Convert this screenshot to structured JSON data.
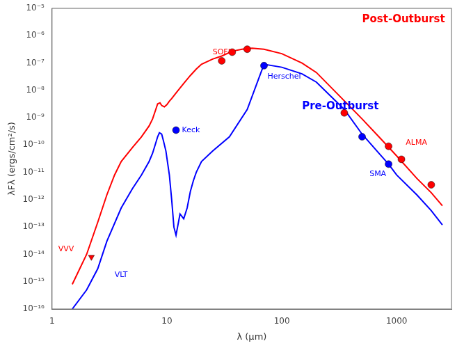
{
  "chart_data": {
    "type": "line",
    "log": true,
    "grid": false,
    "xlabel": "λ (μm)",
    "ylabel": "λFλ (ergs/cm²/s)",
    "xlim": [
      1.0,
      3000.0
    ],
    "ylim": [
      1e-16,
      1e-05
    ],
    "xticks": [
      1,
      10,
      100,
      1000
    ],
    "yticks": [
      {
        "value": 1e-16,
        "label": "10⁻¹⁶"
      },
      {
        "value": 1e-15,
        "label": "10⁻¹⁵"
      },
      {
        "value": 1e-14,
        "label": "10⁻¹⁴"
      },
      {
        "value": 1e-13,
        "label": "10⁻¹³"
      },
      {
        "value": 1e-12,
        "label": "10⁻¹²"
      },
      {
        "value": 1e-11,
        "label": "10⁻¹¹"
      },
      {
        "value": 1e-10,
        "label": "10⁻¹⁰"
      },
      {
        "value": 1e-09,
        "label": "10⁻⁹"
      },
      {
        "value": 1e-08,
        "label": "10⁻⁸"
      },
      {
        "value": 1e-07,
        "label": "10⁻⁷"
      },
      {
        "value": 1e-06,
        "label": "10⁻⁶"
      },
      {
        "value": 1e-05,
        "label": "10⁻⁵"
      }
    ],
    "series": [
      {
        "type": "line",
        "color": "red",
        "line_style": "solid",
        "marker": "none",
        "x": [
          1.5,
          2.0,
          2.5,
          3.0,
          3.5,
          4.0,
          5.0,
          6.0,
          7.0,
          7.5,
          8.0,
          8.3,
          8.7,
          9.0,
          9.5,
          10.0,
          10.5,
          11.0,
          12.0,
          14.0,
          16.0,
          18.0,
          20.0,
          25.0,
          30.0,
          37.0,
          45.0,
          55.0,
          70.0,
          100.0,
          150.0,
          200.0,
          300.0,
          500.0,
          700.0,
          1000.0,
          1500.0,
          2000.0,
          2500.0
        ],
        "values": [
          8e-16,
          1e-14,
          1.5e-13,
          1.5e-12,
          8e-12,
          2.5e-11,
          8e-11,
          2e-10,
          5e-10,
          9e-10,
          2e-09,
          3.2e-09,
          3.5e-09,
          2.8e-09,
          2.5e-09,
          3e-09,
          4e-09,
          5e-09,
          8e-09,
          1.8e-08,
          3.5e-08,
          6e-08,
          9e-08,
          1.4e-07,
          1.8e-07,
          2.7e-07,
          3.2e-07,
          3.5e-07,
          3.2e-07,
          2.2e-07,
          1e-07,
          4.5e-08,
          8e-09,
          9e-10,
          2e-10,
          4e-11,
          6e-12,
          1.8e-12,
          6e-13
        ]
      },
      {
        "type": "line",
        "color": "blue",
        "line_style": "solid",
        "marker": "none",
        "x": [
          1.5,
          2.0,
          2.5,
          3.0,
          4.0,
          5.0,
          6.0,
          7.0,
          7.5,
          8.0,
          8.3,
          8.6,
          9.0,
          9.3,
          9.8,
          10.5,
          11.0,
          11.5,
          12.0,
          13.0,
          14.0,
          15.0,
          16.0,
          17.0,
          18.0,
          20.0,
          25.0,
          35.0,
          50.0,
          70.0,
          100.0,
          150.0,
          200.0,
          350.0,
          500.0,
          700.0,
          850.0,
          1000.0,
          1500.0,
          2000.0,
          2500.0
        ],
        "values": [
          1e-16,
          5e-16,
          3e-15,
          3e-14,
          5e-13,
          2.5e-12,
          8e-12,
          2.5e-11,
          5e-11,
          1.2e-10,
          2e-10,
          2.8e-10,
          2.5e-10,
          1.5e-10,
          6e-11,
          8e-12,
          1e-12,
          1e-13,
          5e-14,
          3e-13,
          2e-13,
          5e-13,
          2e-12,
          5e-12,
          1e-11,
          2.5e-11,
          6e-11,
          2e-10,
          2e-09,
          9e-08,
          7e-08,
          4e-08,
          2e-08,
          2e-09,
          2.5e-10,
          5e-11,
          2e-11,
          8e-12,
          1.5e-12,
          4e-13,
          1.2e-13
        ]
      },
      {
        "type": "scatter",
        "color": "red",
        "marker": "triangle_down",
        "x": [
          2.2
        ],
        "values": [
          8e-15
        ]
      },
      {
        "type": "scatter",
        "color": "red",
        "marker": "circle",
        "x": [
          30.0,
          37.0,
          50.0,
          350.0,
          850.0,
          1100.0,
          2000.0
        ],
        "values": [
          1.2e-07,
          2.5e-07,
          3.2e-07,
          1.5e-09,
          9e-11,
          3e-11,
          3.5e-12
        ]
      },
      {
        "type": "scatter",
        "color": "blue",
        "marker": "circle",
        "x": [
          12.0,
          70.0,
          500.0,
          850.0
        ],
        "values": [
          3.5e-10,
          8e-08,
          2e-10,
          2e-11
        ]
      }
    ],
    "annotations": [
      {
        "text": "VVV",
        "x": 1.55,
        "y": 1.5e-14,
        "color": "red"
      },
      {
        "text": "VLT",
        "x": 3.5,
        "y": 1.8e-15,
        "color": "blue"
      },
      {
        "text": "SOFIA",
        "x": 25.0,
        "y": 1.8e-07,
        "color": "red"
      },
      {
        "text": "Herschel",
        "x": 75.0,
        "y": 4.5e-08,
        "color": "blue"
      },
      {
        "text": "Keck",
        "x": 13.5,
        "y": 3.5e-10,
        "color": "blue"
      },
      {
        "text": "ALMA",
        "x": 1200.0,
        "y": 1.2e-10,
        "color": "red"
      },
      {
        "text": "SMA",
        "x": 580.0,
        "y": 1.2e-11,
        "color": "blue"
      },
      {
        "text": "Post-Outburst",
        "x": 500.0,
        "y": 4e-06,
        "color": "red"
      },
      {
        "text": "Pre-Outburst",
        "x": 150.0,
        "y": 2.5e-09,
        "color": "blue"
      }
    ]
  }
}
